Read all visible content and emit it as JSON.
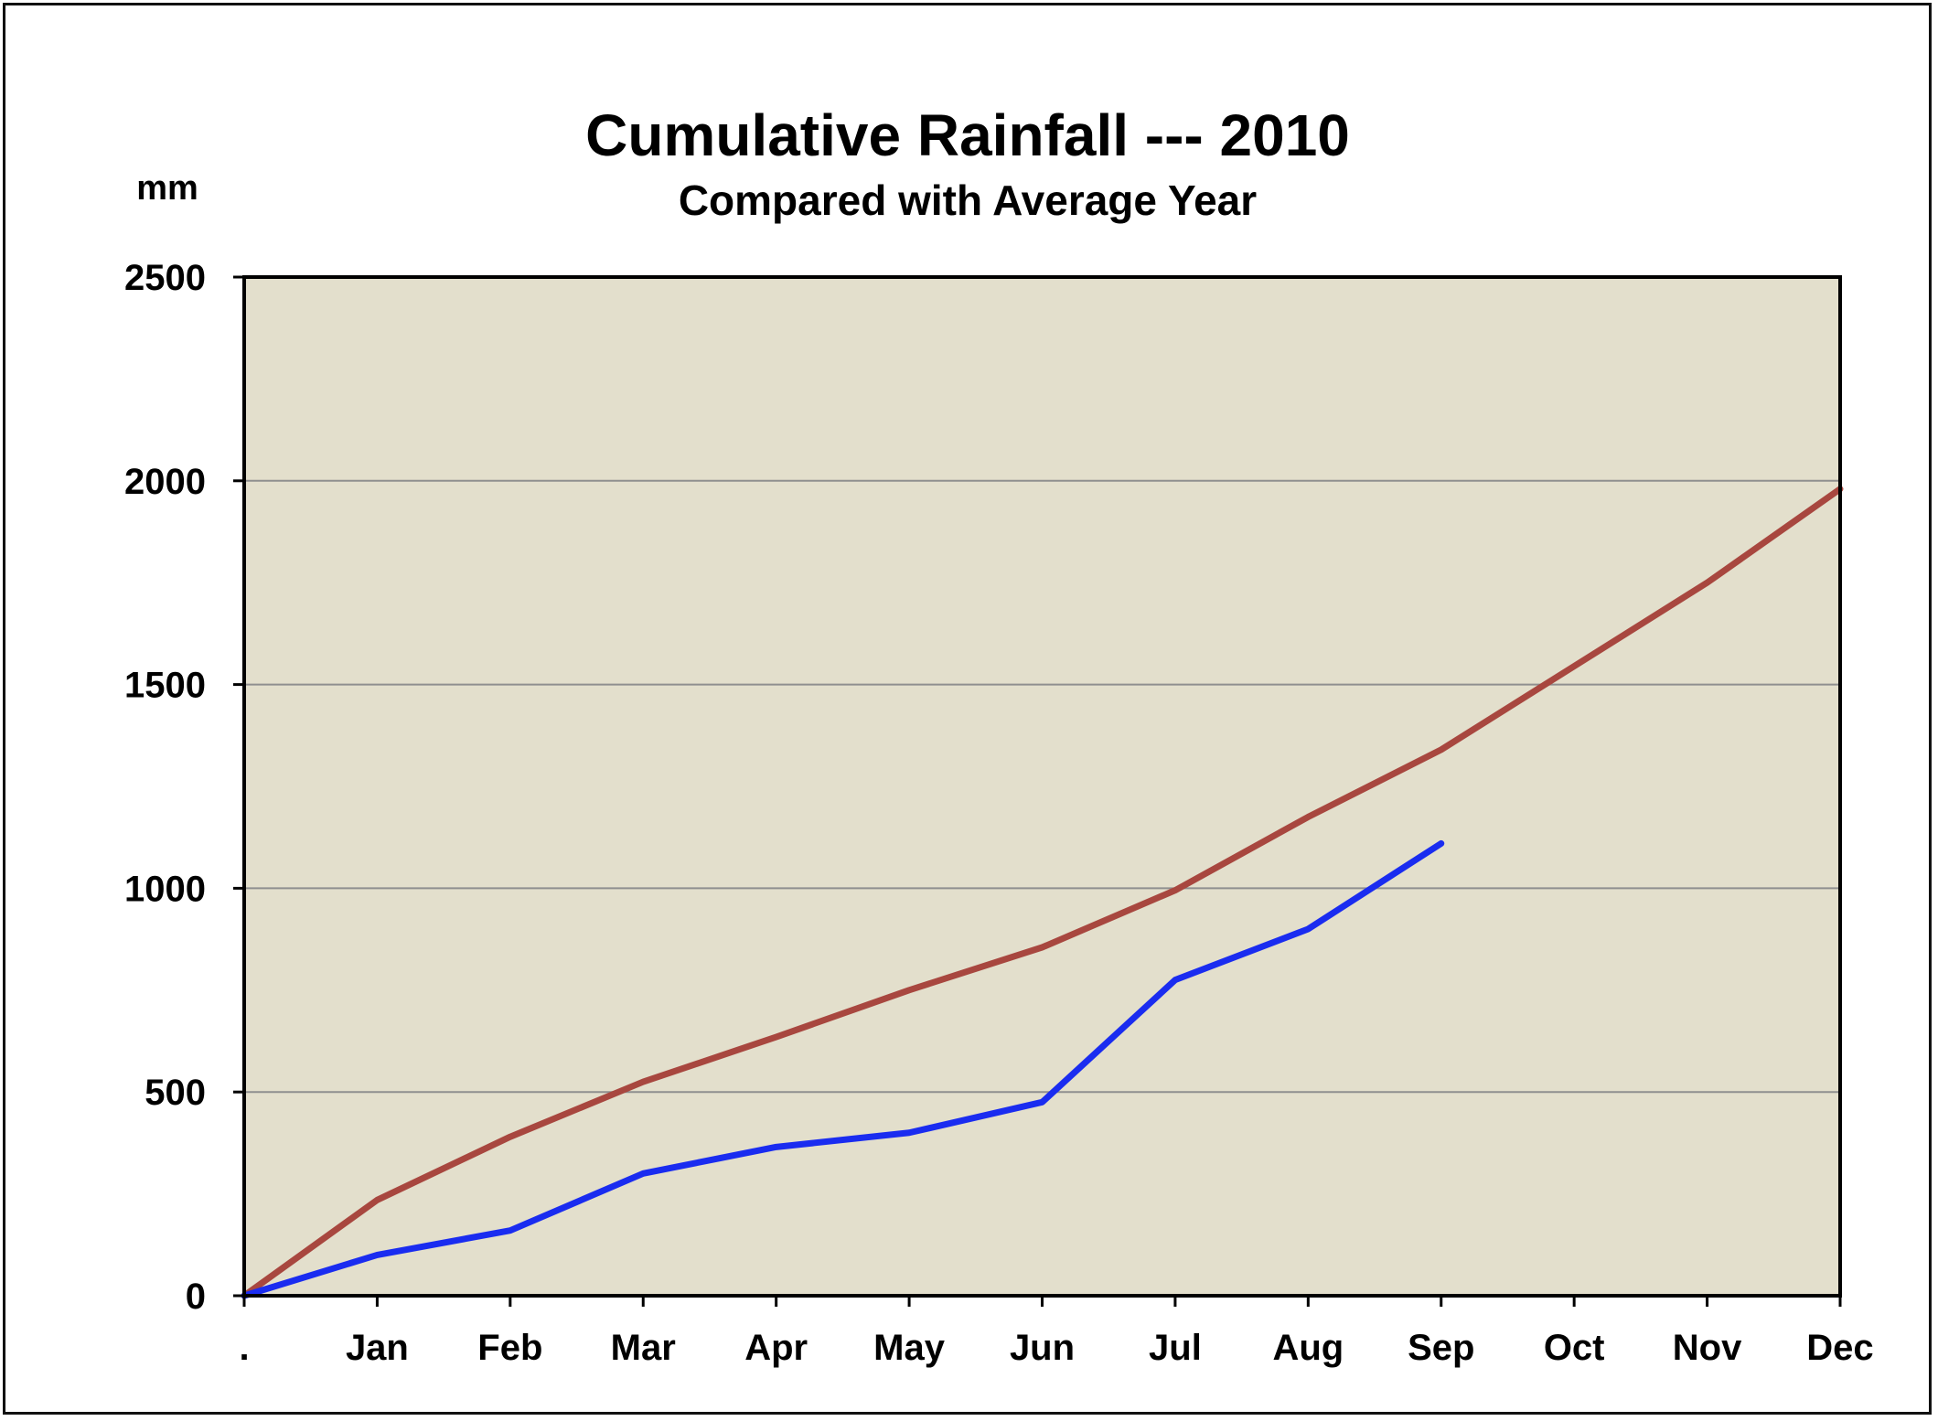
{
  "chart_data": {
    "type": "line",
    "title": "Cumulative Rainfall --- 2010",
    "subtitle": "Compared with Average Year",
    "ylabel": "mm",
    "xlabel": "",
    "categories": [
      ".",
      "Jan",
      "Feb",
      "Mar",
      "Apr",
      "May",
      "Jun",
      "Jul",
      "Aug",
      "Sep",
      "Oct",
      "Nov",
      "Dec"
    ],
    "yticks": [
      0,
      500,
      1000,
      1500,
      2000,
      2500
    ],
    "ylim": [
      0,
      2500
    ],
    "grid": true,
    "series": [
      {
        "color": "#a8473f",
        "values": [
          0,
          235,
          390,
          525,
          635,
          750,
          855,
          995,
          1175,
          1340,
          1545,
          1750,
          1980
        ]
      },
      {
        "color": "#1a2cf0",
        "values": [
          0,
          100,
          160,
          300,
          365,
          400,
          475,
          775,
          900,
          1110,
          null,
          null,
          null
        ]
      }
    ],
    "plot_background": "#e3dfcc"
  }
}
